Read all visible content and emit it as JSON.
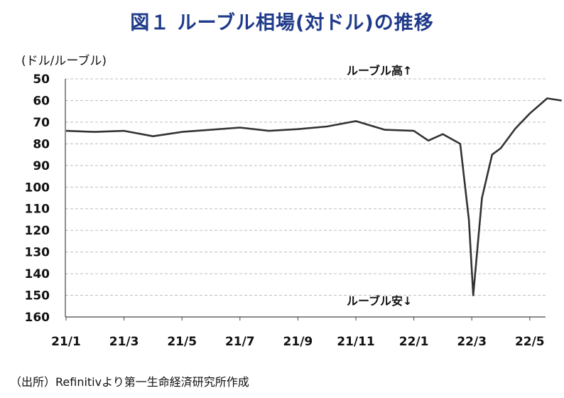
{
  "chart_data": {
    "type": "line",
    "title": "図１ ルーブル相場(対ドル)の推移",
    "ylabel": "(ドル/ルーブル)",
    "y_inverted": true,
    "ylim": [
      50,
      160
    ],
    "yticks": [
      50,
      60,
      70,
      80,
      90,
      100,
      110,
      120,
      130,
      140,
      150,
      160
    ],
    "xticks": [
      "21/1",
      "21/3",
      "21/5",
      "21/7",
      "21/9",
      "21/11",
      "22/1",
      "22/3",
      "22/5"
    ],
    "grid": "horizontal-dashed",
    "annotations": {
      "high": "ルーブル高↑",
      "low": "ルーブル安↓"
    },
    "series": [
      {
        "x": [
          "21/1",
          "21/2",
          "21/3",
          "21/4",
          "21/5",
          "21/6",
          "21/7",
          "21/8",
          "21/9",
          "21/10",
          "21/11",
          "21/12",
          "22/1",
          "22/1下",
          "22/2",
          "22/2下",
          "22/3上",
          "22/3",
          "22/3中",
          "22/3下",
          "22/4",
          "22/4下",
          "22/5",
          "22/5下",
          "22/6"
        ],
        "values": [
          74,
          74.5,
          74,
          76.5,
          74.5,
          73.5,
          72.5,
          74,
          73.2,
          72,
          69.5,
          73.5,
          74,
          78.5,
          75.5,
          80,
          115,
          150,
          105,
          85,
          82,
          73,
          66,
          59,
          60
        ],
        "color": "#333333"
      }
    ]
  },
  "source": "（出所）Refinitivより第一生命経済研究所作成"
}
